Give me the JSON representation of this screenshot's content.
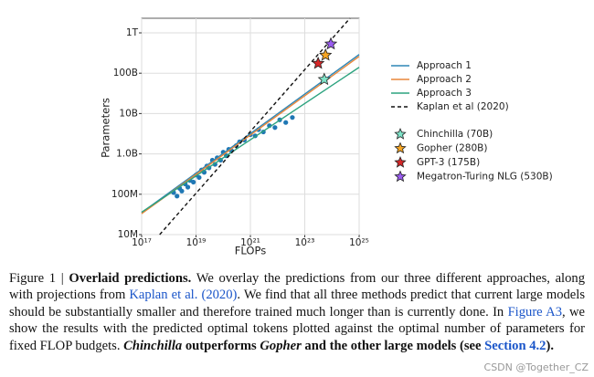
{
  "chart_data": {
    "type": "line",
    "xlabel": "FLOPs",
    "ylabel": "Parameters",
    "log_x": true,
    "log_y": true,
    "grid": true,
    "xlim": [
      1e+17,
      1e+25
    ],
    "ylim": [
      10000000.0,
      2300000000000.0
    ],
    "xticks": [
      {
        "value": 1e+17,
        "label": "10¹⁷"
      },
      {
        "value": 1e+19,
        "label": "10¹⁹"
      },
      {
        "value": 1e+21,
        "label": "10²¹"
      },
      {
        "value": 1e+23,
        "label": "10²³"
      },
      {
        "value": 1e+25,
        "label": "10²⁵"
      }
    ],
    "yticks": [
      {
        "value": 10000000.0,
        "label": "10M"
      },
      {
        "value": 100000000.0,
        "label": "100M"
      },
      {
        "value": 1000000000.0,
        "label": "1.0B"
      },
      {
        "value": 10000000000.0,
        "label": "10B"
      },
      {
        "value": 100000000000.0,
        "label": "100B"
      },
      {
        "value": 1000000000000.0,
        "label": "1T"
      }
    ],
    "series": [
      {
        "name": "Approach 1",
        "color": "#2f86b5",
        "dash": false,
        "x": [
          1e+17,
          1e+25
        ],
        "values": [
          35000000.0,
          290000000000.0
        ]
      },
      {
        "name": "Approach 2",
        "color": "#e8873a",
        "dash": false,
        "x": [
          1e+17,
          1e+25
        ],
        "values": [
          33000000.0,
          260000000000.0
        ]
      },
      {
        "name": "Approach 3",
        "color": "#2ca37f",
        "dash": false,
        "x": [
          1e+17,
          1e+25
        ],
        "values": [
          36000000.0,
          140000000000.0
        ]
      },
      {
        "name": "Kaplan et al (2020)",
        "color": "#111111",
        "dash": true,
        "x": [
          4.6e+17,
          4.6e+24
        ],
        "values": [
          10000000.0,
          2300000000000.0
        ]
      }
    ],
    "points": {
      "color": "#1f77b4",
      "x": [
        1.5e+18,
        2e+18,
        2.5e+18,
        3e+18,
        4e+18,
        5e+18,
        6e+18,
        8e+18,
        1e+19,
        1.3e+19,
        1.6e+19,
        2e+19,
        2.5e+19,
        3e+19,
        4e+19,
        5e+19,
        6e+19,
        8e+19,
        1e+20,
        1.3e+20,
        1.6e+20,
        2e+20,
        3e+20,
        4e+20,
        6e+20,
        1e+21,
        1.5e+21,
        2e+21,
        3e+21,
        5e+21,
        8e+21,
        1.2e+22,
        2e+22,
        3.5e+22
      ],
      "values": [
        110000000.0,
        90000000.0,
        140000000.0,
        120000000.0,
        180000000.0,
        150000000.0,
        220000000.0,
        200000000.0,
        300000000.0,
        260000000.0,
        400000000.0,
        350000000.0,
        500000000.0,
        450000000.0,
        700000000.0,
        550000000.0,
        800000000.0,
        700000000.0,
        1100000000.0,
        900000000.0,
        1300000000.0,
        1200000000.0,
        1600000000.0,
        2000000000.0,
        2200000000.0,
        3000000000.0,
        2800000000.0,
        4000000000.0,
        3500000000.0,
        5000000000.0,
        4500000000.0,
        7000000000.0,
        6000000000.0,
        8000000000.0
      ]
    },
    "models": [
      {
        "name": "Chinchilla (70B)",
        "color": "#7fe3c8",
        "x": 5.2e+23,
        "value": 70000000000.0
      },
      {
        "name": "Gopher (280B)",
        "color": "#f5a524",
        "x": 5.8e+23,
        "value": 280000000000.0
      },
      {
        "name": "GPT-3 (175B)",
        "color": "#d62728",
        "x": 3.1e+23,
        "value": 175000000000.0
      },
      {
        "name": "Megatron-Turing NLG (530B)",
        "color": "#9a5cf0",
        "x": 9.1e+23,
        "value": 530000000000.0
      }
    ]
  },
  "caption": {
    "label": "Figure 1 |",
    "title": "Overlaid predictions.",
    "text1": "We overlay the predictions from our three different approaches, along with projections from",
    "link1": "Kaplan et al.",
    "link2": "(2020)",
    "text2": ". We find that all three methods predict that current large models should be substantially smaller and therefore trained much longer than is currently done. In",
    "link3": "Figure A3",
    "text3": ", we show the results with the predicted optimal tokens plotted against the optimal number of parameters for fixed FLOP budgets.",
    "bold1": "Chinchilla",
    "bold2": "outperforms",
    "bold3": "Gopher",
    "bold4": "and the other large models (see",
    "link4": "Section 4.2",
    "bold5": ")."
  },
  "watermark": "CSDN @Together_CZ"
}
